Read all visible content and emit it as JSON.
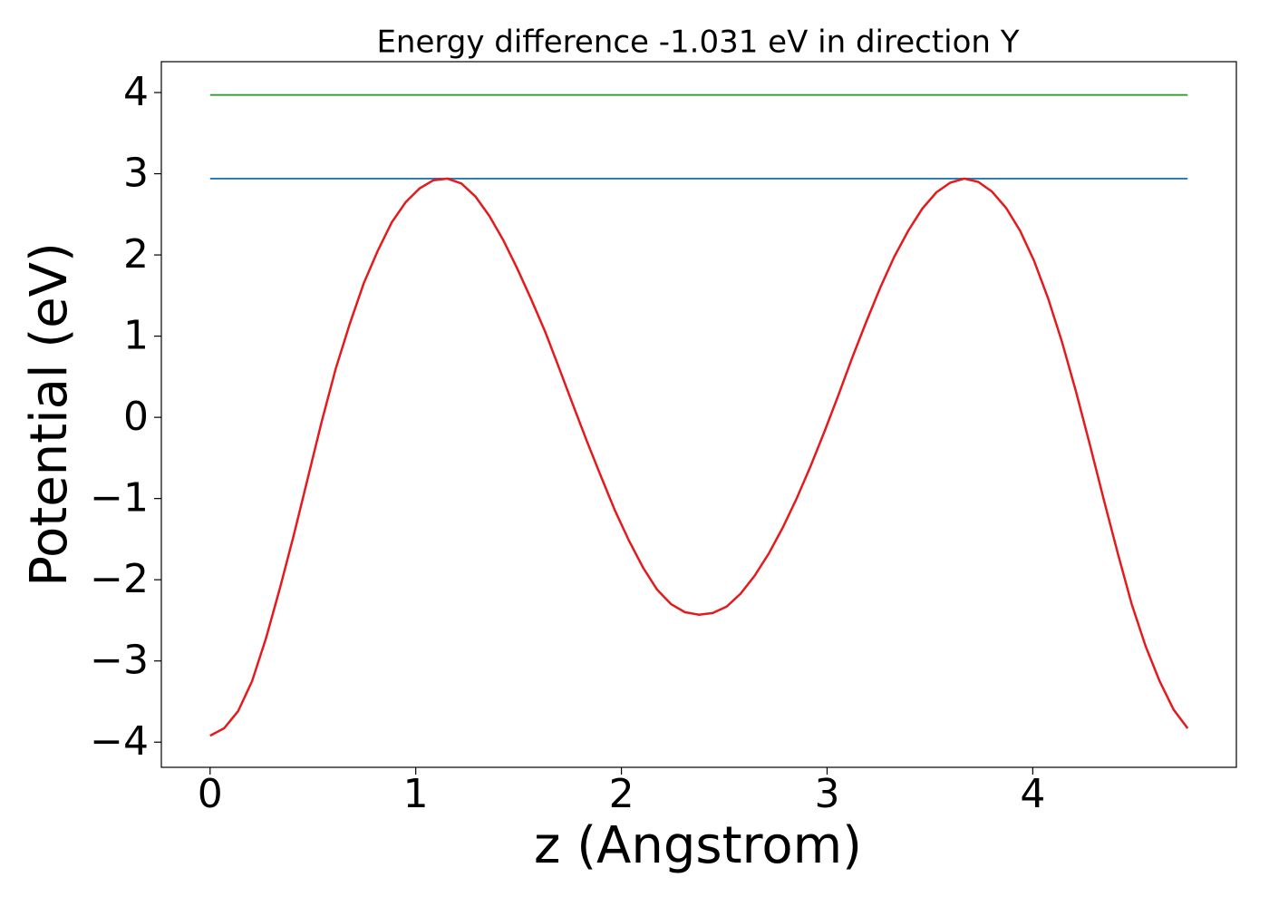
{
  "chart_data": {
    "type": "line",
    "title": "Energy difference -1.031 eV in direction Y",
    "x_label": "z (Angstrom)",
    "y_label": "Potential (eV)",
    "xlim": [
      -0.237,
      4.99
    ],
    "ylim": [
      -4.31,
      4.38
    ],
    "xticks": [
      0,
      1,
      2,
      3,
      4
    ],
    "yticks": [
      {
        "value": -4,
        "label": "−4"
      },
      {
        "value": -3,
        "label": "−3"
      },
      {
        "value": -2,
        "label": "−2"
      },
      {
        "value": -1,
        "label": "−1"
      },
      0,
      1,
      2,
      3,
      4
    ],
    "grid": false,
    "series": [
      {
        "color": "#1f77b4",
        "x": [
          0,
          4.753
        ],
        "values": [
          2.94,
          2.94
        ]
      },
      {
        "color": "#2ca02c",
        "x": [
          0,
          4.753
        ],
        "values": [
          3.97,
          3.97
        ]
      },
      {
        "color": "#e41a1c",
        "x": [
          0,
          0.068,
          0.136,
          0.204,
          0.272,
          0.34,
          0.407,
          0.475,
          0.543,
          0.611,
          0.679,
          0.747,
          0.815,
          0.883,
          0.951,
          1.019,
          1.086,
          1.154,
          1.222,
          1.29,
          1.358,
          1.426,
          1.494,
          1.562,
          1.63,
          1.698,
          1.765,
          1.833,
          1.901,
          1.969,
          2.037,
          2.105,
          2.173,
          2.241,
          2.309,
          2.377,
          2.444,
          2.512,
          2.58,
          2.648,
          2.716,
          2.784,
          2.852,
          2.92,
          2.988,
          3.056,
          3.123,
          3.191,
          3.259,
          3.327,
          3.395,
          3.463,
          3.531,
          3.599,
          3.667,
          3.735,
          3.802,
          3.87,
          3.938,
          4.006,
          4.074,
          4.142,
          4.21,
          4.278,
          4.346,
          4.414,
          4.481,
          4.549,
          4.617,
          4.685,
          4.753
        ],
        "values": [
          -3.92,
          -3.83,
          -3.62,
          -3.25,
          -2.72,
          -2.1,
          -1.45,
          -0.75,
          -0.05,
          0.6,
          1.15,
          1.65,
          2.05,
          2.4,
          2.65,
          2.82,
          2.92,
          2.94,
          2.88,
          2.72,
          2.48,
          2.18,
          1.83,
          1.45,
          1.05,
          0.6,
          0.15,
          -0.3,
          -0.73,
          -1.15,
          -1.52,
          -1.85,
          -2.12,
          -2.3,
          -2.4,
          -2.43,
          -2.41,
          -2.33,
          -2.17,
          -1.95,
          -1.68,
          -1.36,
          -1.0,
          -0.6,
          -0.17,
          0.28,
          0.74,
          1.18,
          1.6,
          1.98,
          2.3,
          2.57,
          2.77,
          2.89,
          2.94,
          2.9,
          2.78,
          2.58,
          2.3,
          1.93,
          1.47,
          0.93,
          0.32,
          -0.34,
          -1.02,
          -1.68,
          -2.3,
          -2.82,
          -3.25,
          -3.6,
          -3.83
        ]
      }
    ]
  }
}
